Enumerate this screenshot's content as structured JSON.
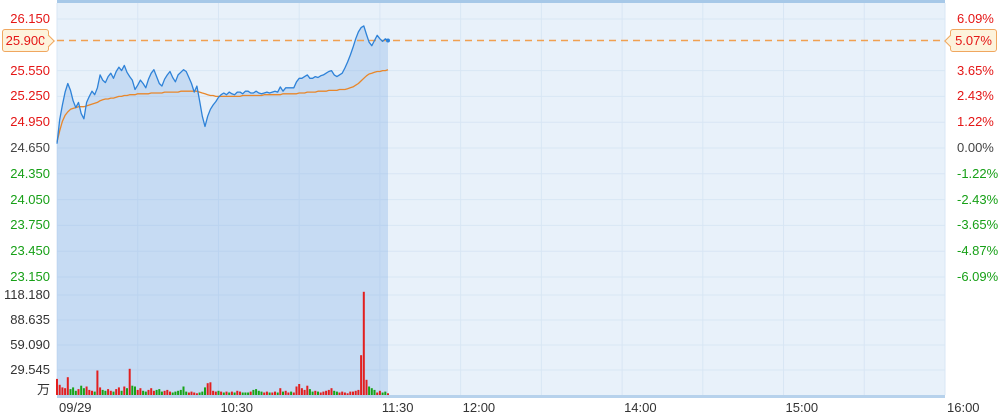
{
  "colors": {
    "up": "#e41616",
    "down": "#17a017",
    "flat": "#444444",
    "time_label": "#333333",
    "vol_label": "#333333",
    "line_blue": "#2e82d8",
    "avg_orange": "#e8872b",
    "dash_orange": "#f0a050",
    "grid": "#d8e6f4",
    "plot_bg": "#e8f1fa",
    "area_fill": "rgba(120,170,230,0.30)",
    "top_band": "#a6c8e8",
    "base_band": "#b7d2ec",
    "bar_up": "#e21f1f",
    "bar_down": "#17a317",
    "callout_bg": "#fdf3dc",
    "callout_border": "#f0a75f"
  },
  "current": {
    "price_label": "25.900",
    "pct_label": "5.07%",
    "price": 25.9
  },
  "axes": {
    "left_price": [
      {
        "t": "26.150",
        "v": 26.15,
        "k": "up"
      },
      {
        "t": "25.550",
        "v": 25.55,
        "k": "up"
      },
      {
        "t": "25.250",
        "v": 25.25,
        "k": "up"
      },
      {
        "t": "24.950",
        "v": 24.95,
        "k": "up"
      },
      {
        "t": "24.650",
        "v": 24.65,
        "k": "flat"
      },
      {
        "t": "24.350",
        "v": 24.35,
        "k": "down"
      },
      {
        "t": "24.050",
        "v": 24.05,
        "k": "down"
      },
      {
        "t": "23.750",
        "v": 23.75,
        "k": "down"
      },
      {
        "t": "23.450",
        "v": 23.45,
        "k": "down"
      },
      {
        "t": "23.150",
        "v": 23.15,
        "k": "down"
      }
    ],
    "right_pct": [
      {
        "t": "6.09%",
        "v": 26.15,
        "k": "up"
      },
      {
        "t": "3.65%",
        "v": 25.55,
        "k": "up"
      },
      {
        "t": "2.43%",
        "v": 25.25,
        "k": "up"
      },
      {
        "t": "1.22%",
        "v": 24.95,
        "k": "up"
      },
      {
        "t": "0.00%",
        "v": 24.65,
        "k": "flat"
      },
      {
        "t": "-1.22%",
        "v": 24.35,
        "k": "down"
      },
      {
        "t": "-2.43%",
        "v": 24.05,
        "k": "down"
      },
      {
        "t": "-3.65%",
        "v": 23.75,
        "k": "down"
      },
      {
        "t": "-4.87%",
        "v": 23.45,
        "k": "down"
      },
      {
        "t": "-6.09%",
        "v": 23.15,
        "k": "down"
      }
    ],
    "volume_labels": [
      {
        "t": "118.180",
        "v": 118.18
      },
      {
        "t": "88.635",
        "v": 88.635
      },
      {
        "t": "59.090",
        "v": 59.09
      },
      {
        "t": "29.545",
        "v": 29.545
      }
    ],
    "volume_unit": "万",
    "time_labels": [
      {
        "t": "09/29",
        "min": 0
      },
      {
        "t": "10:30",
        "min": 60
      },
      {
        "t": "11:30",
        "min": 120
      },
      {
        "t": "12:00",
        "min": 150
      },
      {
        "t": "14:00",
        "min": 210
      },
      {
        "t": "15:00",
        "min": 270
      },
      {
        "t": "16:00",
        "min": 330
      }
    ]
  },
  "chart_data": {
    "type": "line",
    "subtype": "intraday-price-volume",
    "session": {
      "open": "09:30",
      "lunch_break": [
        "12:00",
        "13:00"
      ],
      "close": "16:00",
      "total_minutes": 330,
      "gridline_step_minutes": 30
    },
    "prev_close": 24.65,
    "last_price": 25.9,
    "last_change_pct": "5.07%",
    "price_ylim": [
      23.15,
      26.15
    ],
    "pct_ylim": [
      "-6.09%",
      "6.09%"
    ],
    "volume_axis_max": 118.18,
    "volume_unit": "万",
    "minutes_elapsed": 124,
    "price": [
      24.7,
      24.98,
      25.15,
      25.3,
      25.4,
      25.32,
      25.2,
      25.12,
      25.18,
      25.05,
      24.99,
      25.18,
      25.25,
      25.31,
      25.27,
      25.35,
      25.5,
      25.44,
      25.41,
      25.48,
      25.52,
      25.46,
      25.54,
      25.59,
      25.55,
      25.61,
      25.53,
      25.48,
      25.44,
      25.33,
      25.38,
      25.44,
      25.4,
      25.35,
      25.45,
      25.52,
      25.56,
      25.48,
      25.4,
      25.37,
      25.45,
      25.5,
      25.54,
      25.47,
      25.42,
      25.5,
      25.53,
      25.56,
      25.54,
      25.47,
      25.4,
      25.3,
      25.37,
      25.2,
      25.02,
      24.9,
      25.02,
      25.1,
      25.15,
      25.19,
      25.24,
      25.27,
      25.29,
      25.27,
      25.3,
      25.28,
      25.27,
      25.3,
      25.3,
      25.28,
      25.31,
      25.31,
      25.29,
      25.29,
      25.31,
      25.29,
      25.28,
      25.29,
      25.3,
      25.29,
      25.3,
      25.31,
      25.3,
      25.36,
      25.31,
      25.35,
      25.35,
      25.35,
      25.35,
      25.42,
      25.46,
      25.46,
      25.48,
      25.5,
      25.46,
      25.46,
      25.48,
      25.47,
      25.49,
      25.5,
      25.52,
      25.54,
      25.55,
      25.5,
      25.48,
      25.5,
      25.52,
      25.58,
      25.65,
      25.73,
      25.82,
      25.92,
      26.0,
      26.05,
      26.07,
      25.97,
      25.88,
      25.84,
      25.9,
      25.96,
      25.92,
      25.89,
      25.92,
      25.9
    ],
    "avg": [
      24.72,
      24.85,
      24.96,
      25.03,
      25.07,
      25.1,
      25.11,
      25.12,
      25.13,
      25.13,
      25.13,
      25.14,
      25.15,
      25.16,
      25.17,
      25.18,
      25.2,
      25.21,
      25.22,
      25.22,
      25.23,
      25.23,
      25.24,
      25.25,
      25.25,
      25.26,
      25.26,
      25.27,
      25.27,
      25.27,
      25.28,
      25.28,
      25.28,
      25.28,
      25.28,
      25.29,
      25.29,
      25.29,
      25.29,
      25.29,
      25.3,
      25.3,
      25.3,
      25.3,
      25.3,
      25.3,
      25.31,
      25.31,
      25.31,
      25.31,
      25.31,
      25.31,
      25.31,
      25.3,
      25.29,
      25.28,
      25.27,
      25.26,
      25.26,
      25.25,
      25.25,
      25.25,
      25.25,
      25.25,
      25.25,
      25.25,
      25.25,
      25.25,
      25.25,
      25.26,
      25.26,
      25.26,
      25.26,
      25.26,
      25.26,
      25.26,
      25.26,
      25.27,
      25.27,
      25.27,
      25.27,
      25.27,
      25.27,
      25.27,
      25.28,
      25.28,
      25.28,
      25.28,
      25.28,
      25.28,
      25.29,
      25.29,
      25.29,
      25.3,
      25.3,
      25.3,
      25.3,
      25.31,
      25.31,
      25.31,
      25.31,
      25.32,
      25.32,
      25.32,
      25.32,
      25.33,
      25.33,
      25.33,
      25.34,
      25.35,
      25.36,
      25.38,
      25.4,
      25.43,
      25.46,
      25.49,
      25.51,
      25.52,
      25.53,
      25.54,
      25.54,
      25.55,
      25.55,
      25.56
    ],
    "volume": [
      19,
      12,
      9,
      8,
      21,
      7,
      9,
      5,
      7,
      11,
      8,
      10,
      6,
      5,
      4,
      29,
      9,
      6,
      5,
      7,
      5,
      4,
      7,
      9,
      5,
      10,
      8,
      31,
      11,
      10,
      6,
      8,
      5,
      4,
      6,
      8,
      5,
      6,
      7,
      4,
      5,
      6,
      4,
      3,
      4,
      5,
      6,
      10,
      4,
      3,
      4,
      3,
      2,
      3,
      4,
      9,
      14,
      15,
      5,
      4,
      5,
      4,
      3,
      4,
      3,
      4,
      3,
      5,
      4,
      3,
      3,
      3,
      4,
      6,
      7,
      5,
      4,
      3,
      4,
      3,
      3,
      4,
      3,
      8,
      4,
      5,
      3,
      4,
      3,
      10,
      13,
      8,
      6,
      11,
      7,
      4,
      5,
      4,
      3,
      4,
      5,
      6,
      8,
      5,
      4,
      3,
      4,
      3,
      2,
      4,
      4,
      5,
      6,
      47,
      122,
      18,
      10,
      8,
      6,
      3,
      5,
      3,
      4,
      2
    ],
    "volume_dir": [
      "rrrrrgggrg",
      "grrrgrrggr",
      "rgrrgrgrgg",
      "rrggrrrggg",
      "rrrggggggr",
      "rrrgggrrrr",
      "grgrgrgrrg",
      "ggrggggrrg",
      "rrgrgrrgrr",
      "rrrrggrgrr",
      "rrrggrrrrr",
      "rrrrrrgggr",
      "rggr"
    ]
  }
}
